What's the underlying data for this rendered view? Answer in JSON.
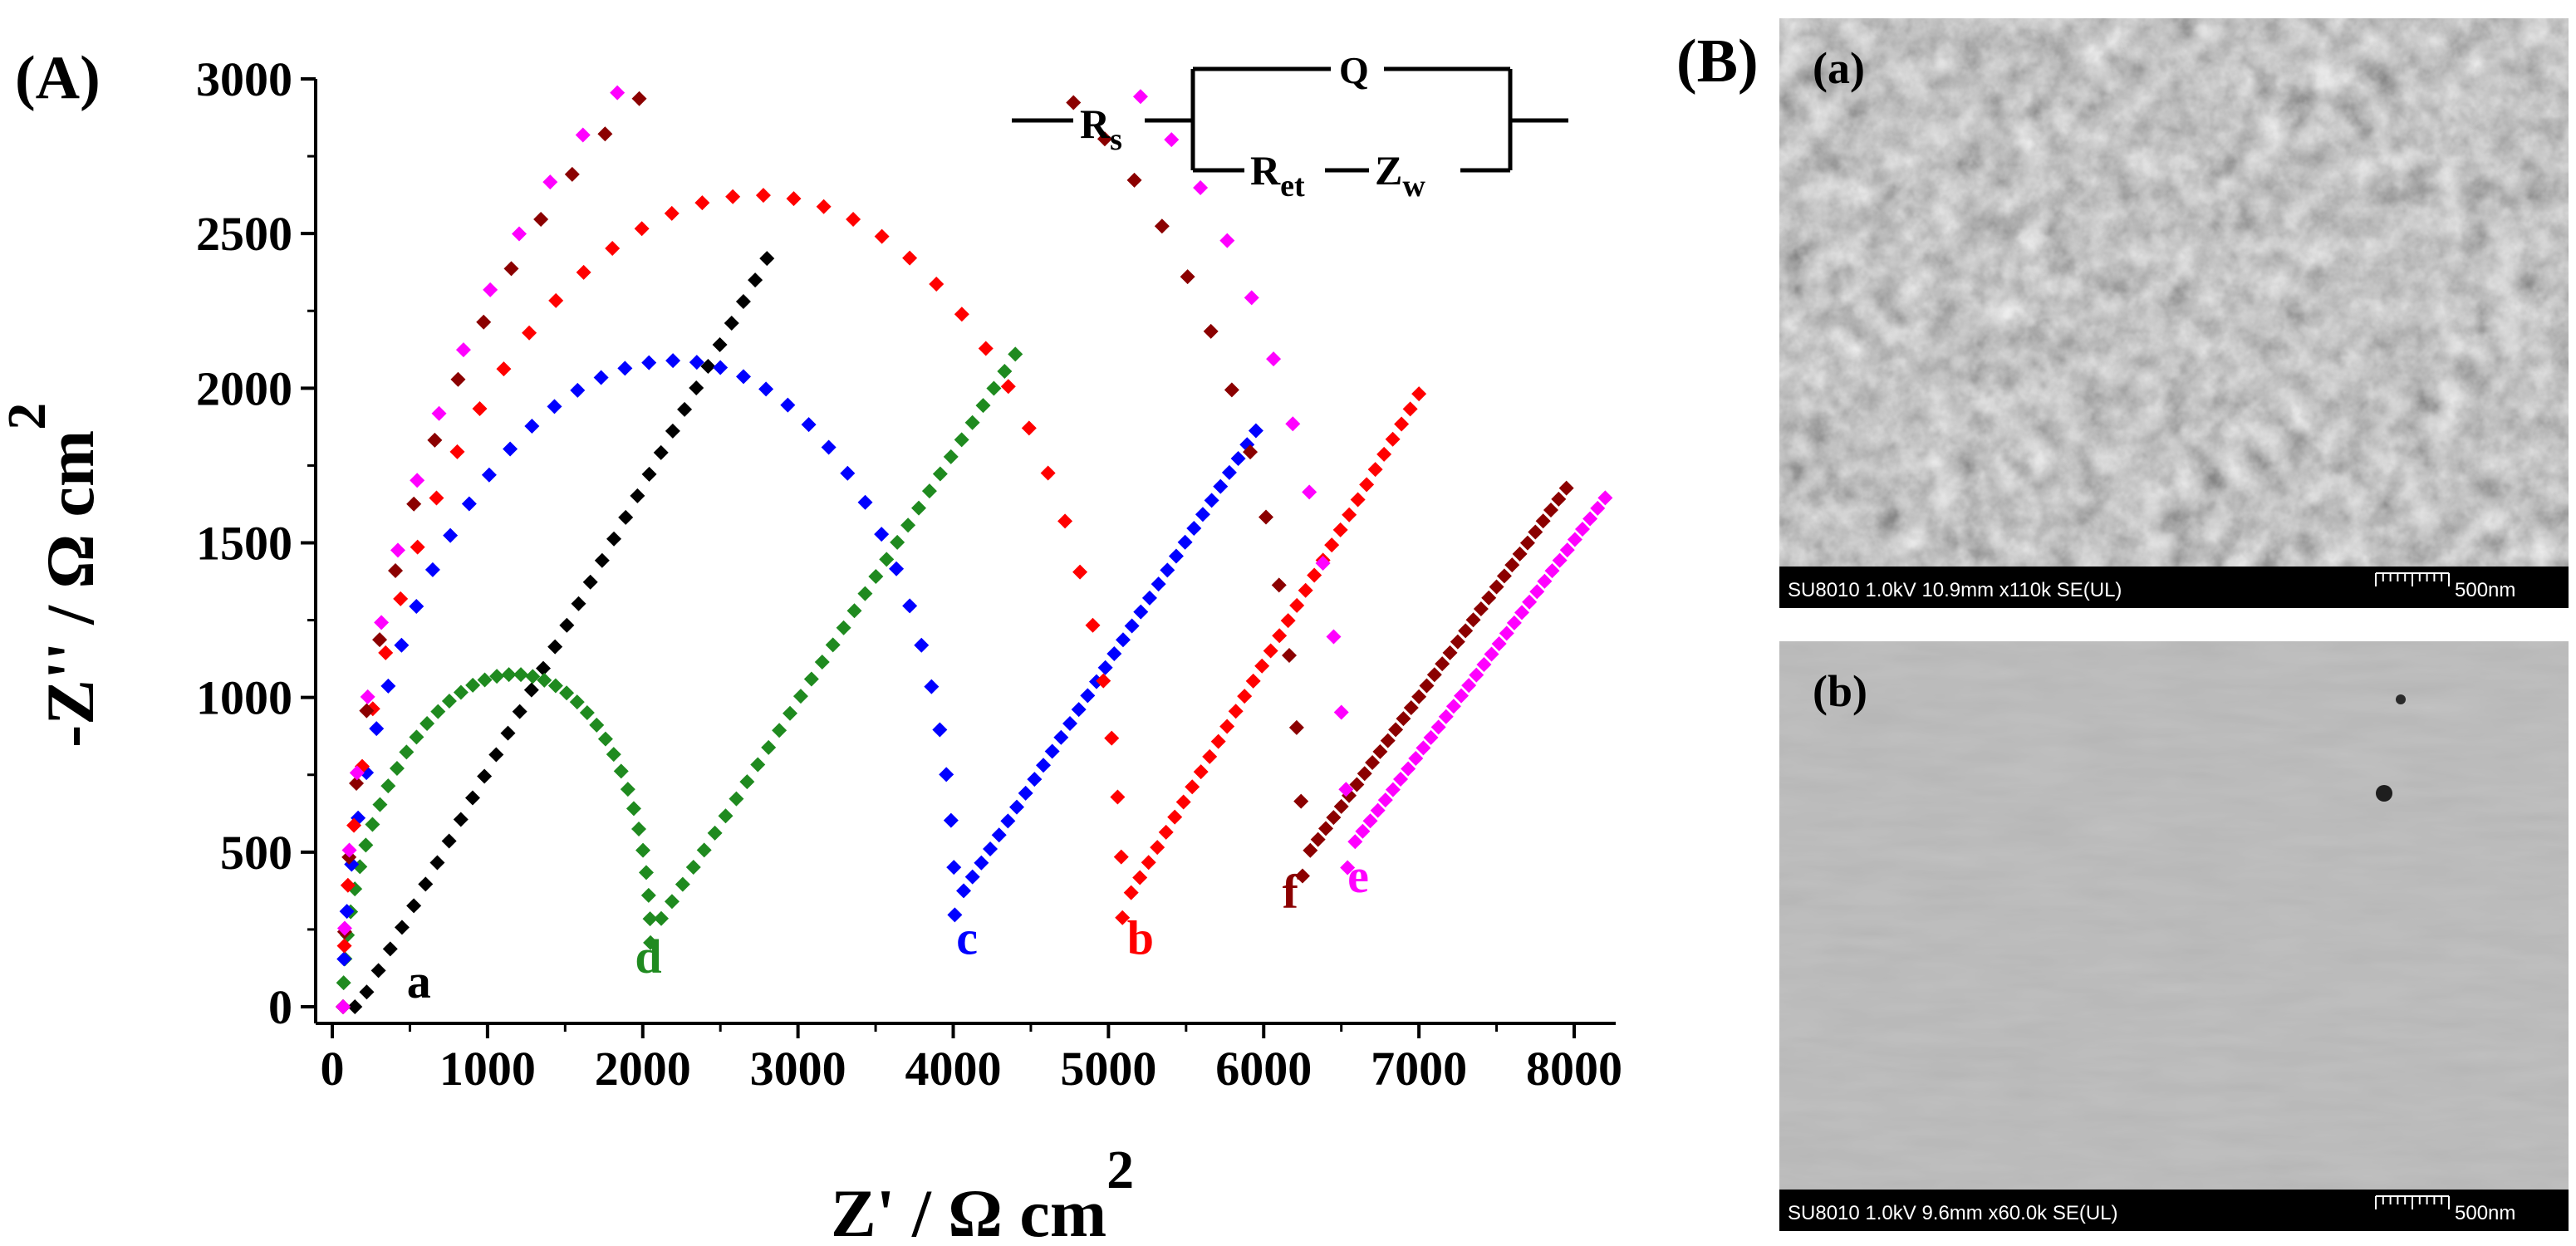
{
  "figure": {
    "panel_a_label": "(A)",
    "panel_b_label": "(B)"
  },
  "circuit": {
    "rs_main": "R",
    "rs_sub": "s",
    "q": "Q",
    "ret_main": "R",
    "ret_sub": "et",
    "zw_main": "Z",
    "zw_sub": "w"
  },
  "chart_data": {
    "type": "scatter",
    "title": "",
    "xlabel_main": "Z' / Ω cm",
    "xlabel_sup": "2",
    "ylabel_main": "-Z'' / Ω cm",
    "ylabel_sup": "2",
    "xlim": [
      -100,
      8650
    ],
    "ylim": [
      -80,
      3000
    ],
    "xticks": [
      "0",
      "1000",
      "2000",
      "3000",
      "4000",
      "5000",
      "6000",
      "7000",
      "8000"
    ],
    "yticks": [
      "0",
      "500",
      "1000",
      "1500",
      "2000",
      "2500",
      "3000"
    ],
    "marker": "diamond",
    "series": [
      {
        "name": "a",
        "color": "#000000",
        "rs": 70,
        "rct": 0,
        "yoff": 0,
        "wlin": 1.0,
        "win": 0,
        "xend": 2800,
        "label": {
          "x": 480,
          "y": 30
        }
      },
      {
        "name": "d",
        "color": "#1f8a1f",
        "rs": 70,
        "rct": 1980,
        "yoff": 230,
        "wlin": 0.8,
        "win": 180,
        "xend": 4400,
        "label": {
          "x": 1950,
          "y": 110
        }
      },
      {
        "name": "c",
        "color": "#0000ff",
        "rs": 70,
        "rct": 3940,
        "yoff": 330,
        "wlin": 0.79,
        "win": 150,
        "xend": 5950,
        "label": {
          "x": 4020,
          "y": 170
        }
      },
      {
        "name": "b",
        "color": "#ff0000",
        "rs": 70,
        "rct": 5020,
        "yoff": 320,
        "wlin": 0.87,
        "win": 150,
        "xend": 7000,
        "label": {
          "x": 5120,
          "y": 170
        }
      },
      {
        "name": "f",
        "color": "#8b0000",
        "rs": 70,
        "rct": 6180,
        "yoff": 470,
        "wlin": 0.71,
        "win": 150,
        "xend": 7950,
        "label": {
          "x": 6120,
          "y": 320
        }
      },
      {
        "name": "e",
        "color": "#ff00ff",
        "rs": 70,
        "rct": 6470,
        "yoff": 500,
        "wlin": 0.69,
        "win": 200,
        "xend": 8200,
        "label": {
          "x": 6540,
          "y": 370
        }
      }
    ]
  },
  "sem_images": [
    {
      "label": "(a)",
      "caption": "SU8010 1.0kV 10.9mm x110k SE(UL)",
      "scale": "500nm"
    },
    {
      "label": "(b)",
      "caption": "SU8010 1.0kV 9.6mm x60.0k SE(UL)",
      "scale": "500nm"
    }
  ]
}
